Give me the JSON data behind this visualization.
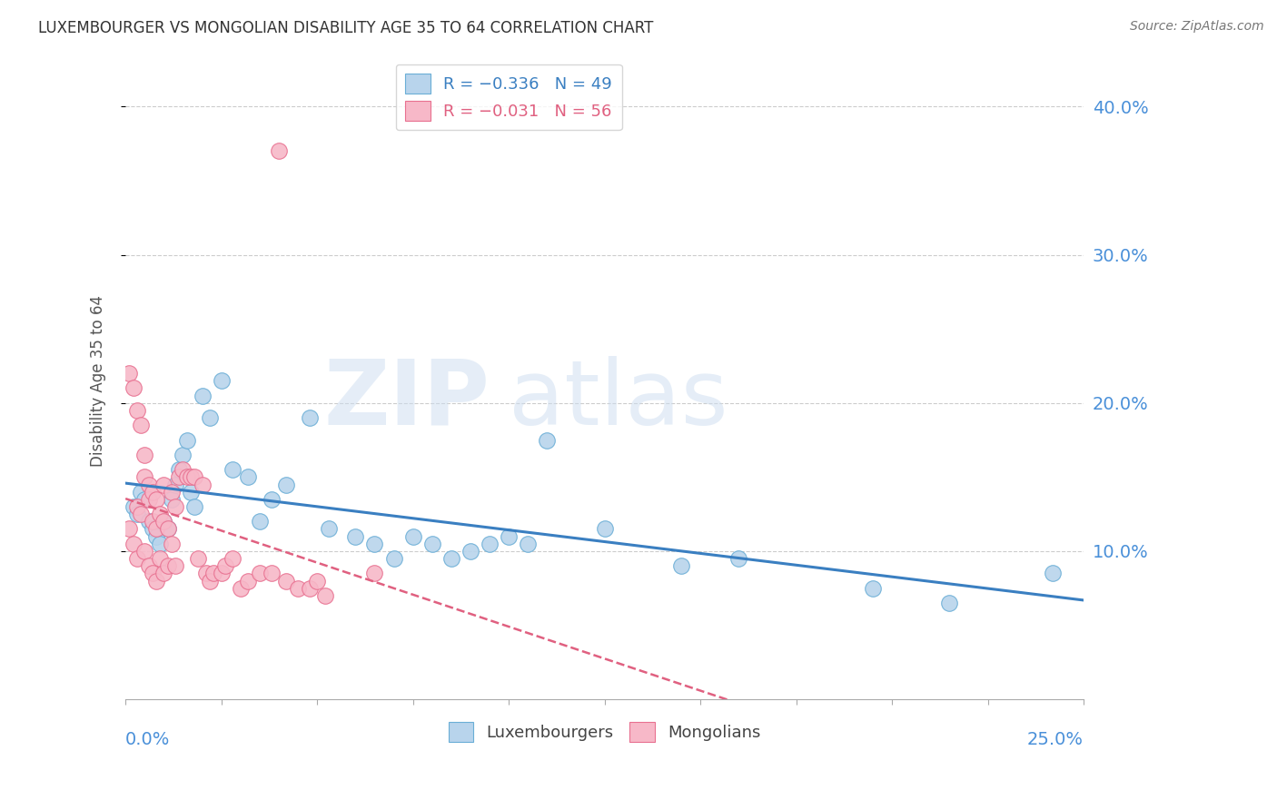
{
  "title": "LUXEMBOURGER VS MONGOLIAN DISABILITY AGE 35 TO 64 CORRELATION CHART",
  "source": "Source: ZipAtlas.com",
  "ylabel": "Disability Age 35 to 64",
  "xlim": [
    0.0,
    25.0
  ],
  "ylim": [
    0.0,
    43.0
  ],
  "ytick_vals": [
    10.0,
    20.0,
    30.0,
    40.0
  ],
  "ytick_labels": [
    "10.0%",
    "20.0%",
    "30.0%",
    "40.0%"
  ],
  "xtick_vals": [
    0.0,
    2.5,
    5.0,
    7.5,
    10.0,
    12.5,
    15.0,
    17.5,
    20.0,
    22.5,
    25.0
  ],
  "lux_face": "#b8d4ec",
  "lux_edge": "#6aaed6",
  "mon_face": "#f7b8c8",
  "mon_edge": "#e87090",
  "trend_blue": "#3a7fc1",
  "trend_pink": "#e06080",
  "axis_label_color": "#4a90d9",
  "grid_color": "#cccccc",
  "title_color": "#333333",
  "source_color": "#777777",
  "lux_x": [
    0.2,
    0.3,
    0.4,
    0.5,
    0.6,
    0.7,
    0.8,
    0.9,
    1.0,
    1.1,
    1.2,
    1.3,
    1.4,
    1.5,
    1.6,
    1.7,
    1.8,
    2.0,
    2.2,
    2.5,
    2.8,
    3.2,
    3.5,
    3.8,
    4.2,
    4.8,
    5.3,
    6.0,
    6.5,
    7.0,
    7.5,
    8.0,
    8.5,
    9.0,
    9.5,
    10.0,
    10.5,
    11.0,
    12.5,
    14.5,
    16.0,
    19.5,
    21.5,
    24.2
  ],
  "lux_y": [
    13.0,
    12.5,
    14.0,
    13.5,
    12.0,
    11.5,
    11.0,
    10.5,
    12.0,
    11.5,
    13.5,
    14.5,
    15.5,
    16.5,
    17.5,
    14.0,
    13.0,
    20.5,
    19.0,
    21.5,
    15.5,
    15.0,
    12.0,
    13.5,
    14.5,
    19.0,
    11.5,
    11.0,
    10.5,
    9.5,
    11.0,
    10.5,
    9.5,
    10.0,
    10.5,
    11.0,
    10.5,
    17.5,
    11.5,
    9.0,
    9.5,
    7.5,
    6.5,
    8.5
  ],
  "mon_x": [
    0.1,
    0.1,
    0.2,
    0.2,
    0.3,
    0.3,
    0.3,
    0.4,
    0.4,
    0.5,
    0.5,
    0.5,
    0.6,
    0.6,
    0.6,
    0.7,
    0.7,
    0.7,
    0.8,
    0.8,
    0.8,
    0.9,
    0.9,
    1.0,
    1.0,
    1.0,
    1.1,
    1.1,
    1.2,
    1.2,
    1.3,
    1.3,
    1.4,
    1.5,
    1.6,
    1.7,
    1.8,
    1.9,
    2.0,
    2.1,
    2.2,
    2.3,
    2.5,
    2.6,
    2.8,
    3.0,
    3.2,
    3.5,
    3.8,
    4.0,
    4.2,
    4.5,
    4.8,
    5.0,
    5.2,
    6.5
  ],
  "mon_y": [
    22.0,
    11.5,
    21.0,
    10.5,
    19.5,
    13.0,
    9.5,
    18.5,
    12.5,
    16.5,
    15.0,
    10.0,
    14.5,
    13.5,
    9.0,
    14.0,
    12.0,
    8.5,
    13.5,
    11.5,
    8.0,
    12.5,
    9.5,
    14.5,
    12.0,
    8.5,
    11.5,
    9.0,
    14.0,
    10.5,
    13.0,
    9.0,
    15.0,
    15.5,
    15.0,
    15.0,
    15.0,
    9.5,
    14.5,
    8.5,
    8.0,
    8.5,
    8.5,
    9.0,
    9.5,
    7.5,
    8.0,
    8.5,
    8.5,
    37.0,
    8.0,
    7.5,
    7.5,
    8.0,
    7.0,
    8.5
  ]
}
